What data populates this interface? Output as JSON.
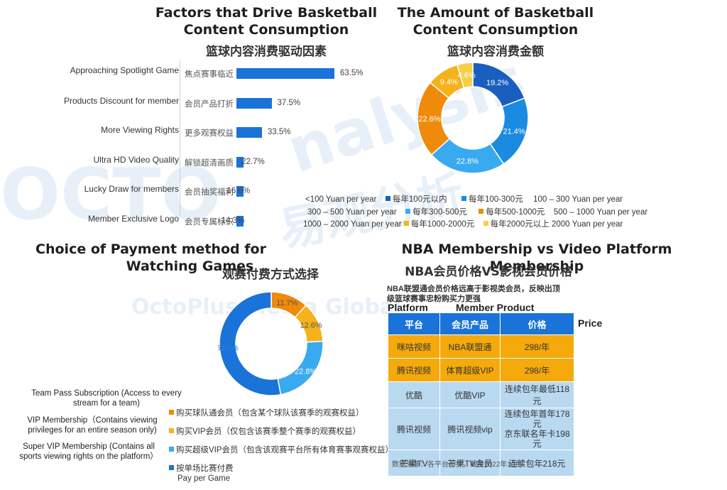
{
  "bar_panel": {
    "title_en_1": "Factors that Drive Basketball",
    "title_en_2": "Content Consumption",
    "title_cn": "篮球内容消费驱动因素"
  },
  "donut_panel": {
    "title_en_1": "The Amount of Basketball",
    "title_en_2": "Content Consumption",
    "title_cn": "篮球内容消费金额",
    "legend": [
      {
        "en_left": "<100 Yuan per year",
        "cn": "每年100元以内",
        "color": "#1a5fbf"
      },
      {
        "en_left": "",
        "cn": "每年100-300元",
        "en_right": "100 – 300 Yuan per year",
        "color": "#1a8be0"
      },
      {
        "en_left": "300 – 500 Yuan per year",
        "cn": "每年300-500元",
        "color": "#3aaaf0"
      },
      {
        "en_left": "",
        "cn": "每年500-1000元",
        "en_right": "500 – 1000 Yuan per year",
        "color": "#f08a0a"
      },
      {
        "en_left": "1000 – 2000 Yuan per year",
        "cn": "每年1000-2000元",
        "color": "#f5b21a"
      },
      {
        "en_left": "",
        "cn": "每年2000元以上",
        "en_right": "2000 Yuan per year",
        "color": "#f7d04a"
      }
    ]
  },
  "payment_panel": {
    "title_en_1": "Choice of Payment method for",
    "title_en_2": "Watching Games",
    "title_cn": "观赛付费方式选择",
    "legend": [
      {
        "en_1": "Team Pass Subscription (Access to every",
        "en_2": "stream for a team)",
        "cn": "购买球队通会员（包含某个球队该赛季的观赛权益）",
        "color": "#f08a0a"
      },
      {
        "en_1": "VIP Membership（Contains viewing",
        "en_2": "privileges for an entire season only)",
        "cn": "购买VIP会员（仅包含该赛季整个赛季的观赛权益）",
        "color": "#f5b21a"
      },
      {
        "en_1": "Super VIP Membership (Contains all",
        "en_2": "sports viewing rights on the platform）",
        "cn": "购买超级VIP会员（包含该观赛平台所有体育赛事观赛权益）",
        "color": "#3aaaf0"
      },
      {
        "en_1": "",
        "en_2": "",
        "cn": "按单场比赛付费",
        "en_below": "Pay per Game",
        "color": "#1a73d9"
      }
    ]
  },
  "table_panel": {
    "title_en": "NBA Membership vs Video Platform Membership",
    "title_cn": "NBA会员价格VS影视会员价格",
    "note_1": "NBA联盟通会员价格远高于影视类会员，反映出顶",
    "note_2": "级篮球赛事忠粉购买力更强",
    "label_platform": "Platform",
    "label_member": "Member Product",
    "label_price": "Price",
    "headers": [
      "平台",
      "会员产品",
      "价格"
    ],
    "rows": [
      {
        "platform": "咪咕视频",
        "product": "NBA联盟通",
        "price_1": "298/年",
        "price_2": ""
      },
      {
        "platform": "腾讯视频",
        "product": "体育超级VIP",
        "price_1": "298/年",
        "price_2": ""
      },
      {
        "platform": "优酷",
        "product": "优酷VIP",
        "price_1": "连续包年最低118元",
        "price_2": ""
      },
      {
        "platform": "腾讯视频",
        "product": "腾讯视频vip",
        "price_1": "连续包年首年178元",
        "price_2": "京东联名年卡198元"
      },
      {
        "platform": "芒果TV",
        "product": "芒果TV会员",
        "price_1": "连续包年218元",
        "price_2": ""
      }
    ],
    "source": "数据来源：各平台APP，截至2022年10月"
  },
  "watermark": {
    "text_1": "nalysis",
    "text_2": "OCTO",
    "text_3": "易观分析",
    "text_4": "OctoPlus Media Global"
  },
  "chart_data": [
    {
      "type": "bar",
      "orientation": "horizontal",
      "categories_en": [
        "Approaching Spotlight Game",
        "Products Discount for member",
        "More Viewing Rights",
        "Ultra HD Video Quality",
        "Lucky Draw for members",
        "Member Exclusive Logo"
      ],
      "categories": [
        "焦点赛事临近",
        "会员产品打折",
        "更多观赛权益",
        "解锁超清画质",
        "会员抽奖福利",
        "会员专属标识"
      ],
      "values": [
        63.5,
        37.5,
        33.5,
        22.7,
        16.6,
        14.3
      ],
      "value_labels": [
        "63.5%",
        "37.5%",
        "33.5%",
        "22.7%",
        "16.6%",
        "14.3%"
      ],
      "color": "#1a73d9"
    },
    {
      "type": "pie",
      "donut": true,
      "categories": [
        "每年100元以内",
        "每年100-300元",
        "每年300-500元",
        "每年500-1000元",
        "每年1000-2000元",
        "每年2000元以上"
      ],
      "values": [
        19.2,
        21.4,
        22.8,
        22.6,
        9.4,
        4.6
      ],
      "value_labels": [
        "19.2%",
        "21.4%",
        "22.8%",
        "22.6%",
        "9.4%",
        "4.6%"
      ],
      "colors": [
        "#1a5fbf",
        "#1a8be0",
        "#3aaaf0",
        "#f08a0a",
        "#f5b21a",
        "#f7d04a"
      ]
    },
    {
      "type": "pie",
      "donut": true,
      "categories": [
        "购买球队通会员",
        "购买VIP会员",
        "购买超级VIP会员",
        "按单场比赛付费"
      ],
      "values": [
        11.7,
        12.6,
        22.8,
        53.0
      ],
      "value_labels": [
        "11.7%",
        "12.6%",
        "22.8%",
        "53.0%"
      ],
      "colors": [
        "#f08a0a",
        "#f5b21a",
        "#3aaaf0",
        "#1a73d9"
      ]
    }
  ]
}
